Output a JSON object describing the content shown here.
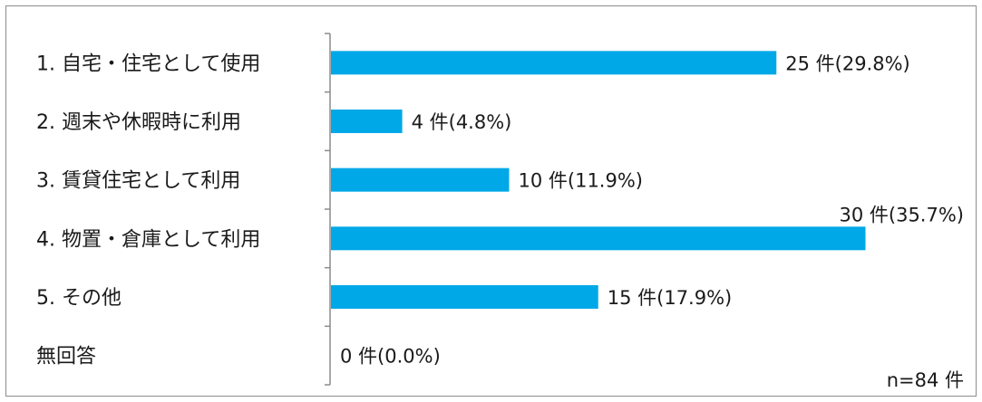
{
  "chart_data": {
    "type": "bar",
    "orientation": "horizontal",
    "categories": [
      "1. 自宅・住宅として使用",
      "2. 週末や休暇時に利用",
      "3. 賃貸住宅として利用",
      "4. 物置・倉庫として利用",
      "5. その他",
      "無回答"
    ],
    "values": [
      25,
      4,
      10,
      30,
      15,
      0
    ],
    "data_labels": [
      "25 件(29.8%)",
      "4 件(4.8%)",
      "10 件(11.9%)",
      "30 件(35.7%)",
      "15 件(17.9%)",
      "0 件(0.0%)"
    ],
    "xlim": [
      0,
      30
    ],
    "title": "",
    "xlabel": "",
    "ylabel": "",
    "grid": false,
    "legend": "none",
    "bar_color": "#00a8e8",
    "note": "n=84 件"
  }
}
